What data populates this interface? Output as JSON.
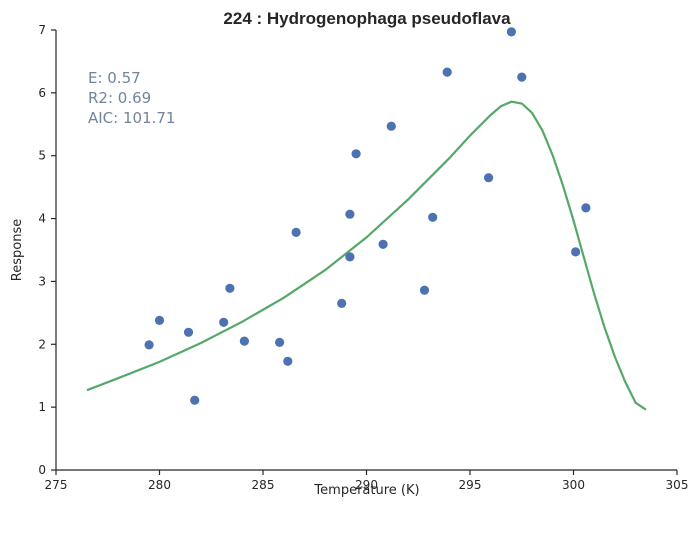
{
  "chart_data": {
    "type": "scatter",
    "title": "224 : Hydrogenophaga pseudoflava",
    "xlabel": "Temperature (K)",
    "ylabel": "Response",
    "xlim": [
      275,
      305
    ],
    "ylim": [
      0,
      7
    ],
    "xticks": [
      275,
      280,
      285,
      290,
      295,
      300,
      305
    ],
    "yticks": [
      0,
      1,
      2,
      3,
      4,
      5,
      6,
      7
    ],
    "grid": false,
    "annotations": [
      "E:  0.57",
      "R2:  0.69",
      "AIC: 101.71"
    ],
    "colors": {
      "points": "#4c72b0",
      "fit": "#55a868",
      "annotation": "#72849b"
    },
    "series": [
      {
        "type": "scatter",
        "points": [
          [
            279.5,
            1.99
          ],
          [
            280.0,
            2.38
          ],
          [
            281.4,
            2.19
          ],
          [
            281.7,
            1.11
          ],
          [
            283.1,
            2.35
          ],
          [
            283.4,
            2.89
          ],
          [
            284.1,
            2.05
          ],
          [
            285.8,
            2.03
          ],
          [
            286.2,
            1.73
          ],
          [
            286.6,
            3.78
          ],
          [
            288.8,
            2.65
          ],
          [
            289.2,
            3.39
          ],
          [
            289.2,
            4.07
          ],
          [
            289.5,
            5.03
          ],
          [
            290.8,
            3.59
          ],
          [
            291.2,
            5.47
          ],
          [
            292.8,
            2.86
          ],
          [
            293.2,
            4.02
          ],
          [
            293.9,
            6.33
          ],
          [
            295.9,
            4.65
          ],
          [
            297.0,
            6.97
          ],
          [
            297.5,
            6.25
          ],
          [
            300.1,
            3.47
          ],
          [
            300.6,
            4.17
          ]
        ]
      },
      {
        "type": "line",
        "points": [
          [
            276.5,
            1.27
          ],
          [
            278.0,
            1.46
          ],
          [
            280.0,
            1.72
          ],
          [
            282.0,
            2.02
          ],
          [
            284.0,
            2.36
          ],
          [
            286.0,
            2.74
          ],
          [
            288.0,
            3.18
          ],
          [
            290.0,
            3.7
          ],
          [
            292.0,
            4.3
          ],
          [
            294.0,
            4.96
          ],
          [
            295.0,
            5.32
          ],
          [
            296.0,
            5.65
          ],
          [
            296.5,
            5.79
          ],
          [
            297.0,
            5.86
          ],
          [
            297.5,
            5.83
          ],
          [
            298.0,
            5.68
          ],
          [
            298.5,
            5.4
          ],
          [
            299.0,
            5.0
          ],
          [
            299.5,
            4.52
          ],
          [
            300.0,
            3.97
          ],
          [
            300.5,
            3.38
          ],
          [
            301.0,
            2.8
          ],
          [
            301.5,
            2.27
          ],
          [
            302.0,
            1.8
          ],
          [
            302.5,
            1.4
          ],
          [
            303.0,
            1.07
          ],
          [
            303.5,
            0.96
          ]
        ]
      }
    ]
  }
}
